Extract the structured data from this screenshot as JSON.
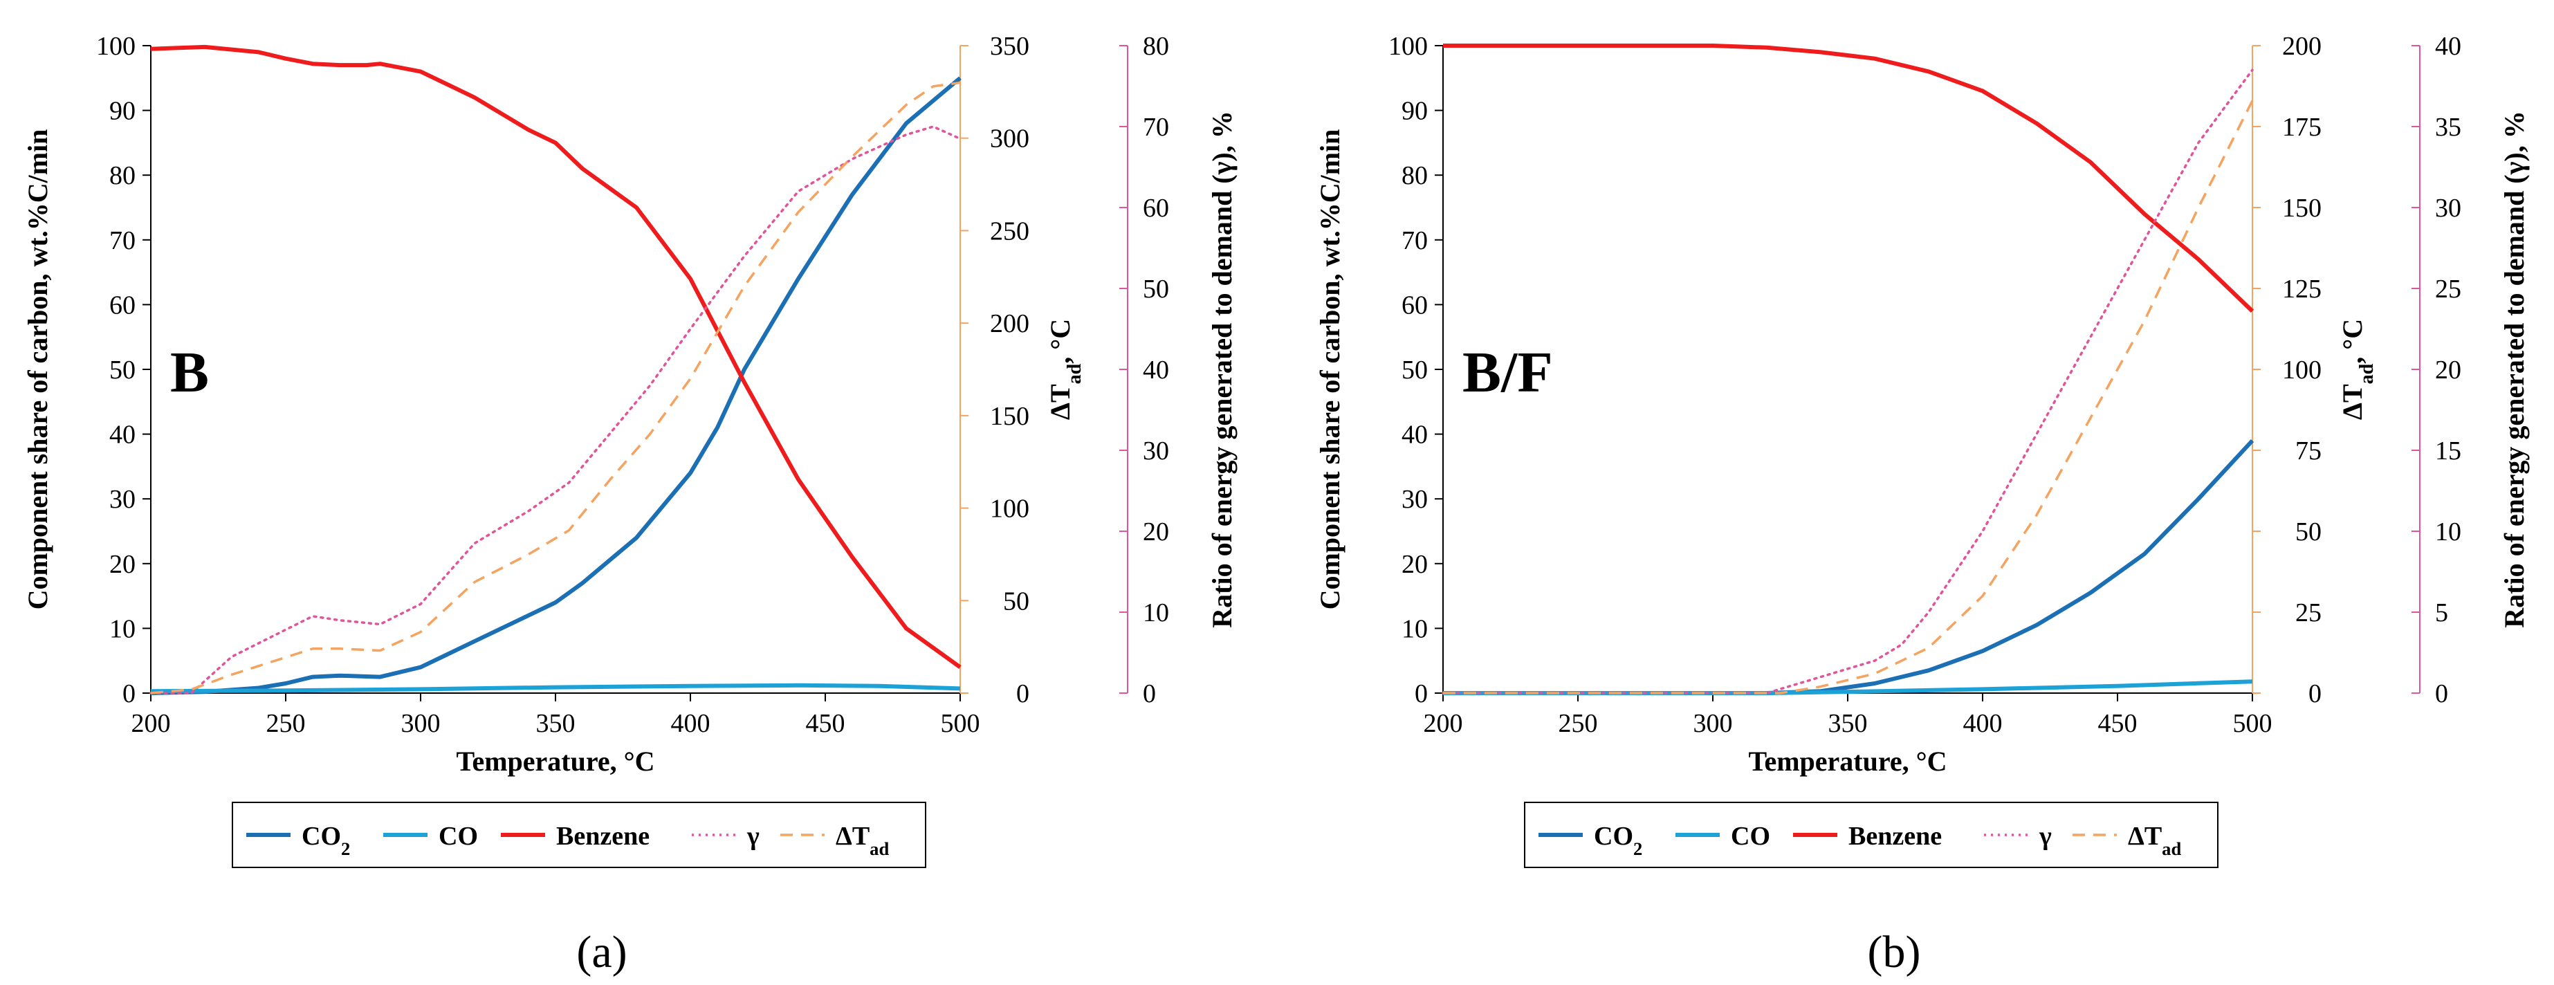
{
  "colors": {
    "co2": "#1a6fb5",
    "co": "#1da2d8",
    "benzene": "#ee1c1c",
    "gamma": "#e0559a",
    "dtad": "#f4a460",
    "axis_left": "#000000",
    "axis_mid": "#f4a460",
    "axis_right": "#e0559a"
  },
  "chart_data": [
    {
      "type": "line",
      "panel_label": "B",
      "caption": "(a)",
      "xlabel": "Temperature, °C",
      "ylabel_left": "Component share of carbon, wt.%C/min",
      "ylabel_mid": "ΔTad, °C",
      "ylabel_right": "Ratio of energy generated to demand (γ), %",
      "xlim": [
        200,
        500
      ],
      "xticks": [
        "200",
        "250",
        "300",
        "350",
        "400",
        "450",
        "500"
      ],
      "ylim_left": [
        0,
        100
      ],
      "yticks_left": [
        "0",
        "10",
        "20",
        "30",
        "40",
        "50",
        "60",
        "70",
        "80",
        "90",
        "100"
      ],
      "ylim_mid": [
        0,
        350
      ],
      "yticks_mid": [
        "0",
        "50",
        "100",
        "150",
        "200",
        "250",
        "300",
        "350"
      ],
      "ylim_right": [
        0,
        80
      ],
      "yticks_right": [
        "0",
        "10",
        "20",
        "30",
        "40",
        "50",
        "60",
        "70",
        "80"
      ],
      "legend": [
        "CO2",
        "CO",
        "Benzene",
        "γ",
        "ΔTad"
      ],
      "series": [
        {
          "name": "CO2",
          "axis": "left",
          "style": "solid",
          "x": [
            200,
            220,
            240,
            250,
            260,
            270,
            285,
            300,
            320,
            340,
            350,
            360,
            380,
            400,
            410,
            420,
            440,
            460,
            480,
            500
          ],
          "y": [
            0,
            0.2,
            0.8,
            1.5,
            2.5,
            2.7,
            2.5,
            4,
            8,
            12,
            14,
            17,
            24,
            34,
            41,
            50,
            64,
            77,
            88,
            95
          ]
        },
        {
          "name": "CO",
          "axis": "left",
          "style": "solid",
          "x": [
            200,
            250,
            300,
            350,
            400,
            440,
            470,
            500
          ],
          "y": [
            0.3,
            0.4,
            0.6,
            0.9,
            1.1,
            1.2,
            1.1,
            0.7
          ]
        },
        {
          "name": "Benzene",
          "axis": "left",
          "style": "solid",
          "x": [
            200,
            220,
            240,
            250,
            260,
            270,
            280,
            285,
            300,
            320,
            340,
            350,
            360,
            380,
            400,
            420,
            440,
            460,
            480,
            500
          ],
          "y": [
            99.5,
            99.8,
            99,
            98,
            97.2,
            97,
            97,
            97.2,
            96,
            92,
            87,
            85,
            81,
            75,
            64,
            48,
            33,
            21,
            10,
            4
          ]
        },
        {
          "name": "γ",
          "axis": "right",
          "style": "dotted",
          "x": [
            200,
            215,
            230,
            245,
            260,
            270,
            285,
            300,
            320,
            340,
            355,
            370,
            385,
            400,
            420,
            440,
            460,
            480,
            490,
            500
          ],
          "y": [
            0,
            0,
            4.5,
            7,
            9.5,
            9,
            8.5,
            11,
            18.5,
            22.5,
            26,
            32,
            38,
            45,
            54,
            62,
            66,
            69,
            70,
            68.5
          ]
        },
        {
          "name": "ΔTad",
          "axis": "mid",
          "style": "dashed",
          "x": [
            200,
            215,
            230,
            245,
            260,
            270,
            285,
            300,
            320,
            340,
            355,
            370,
            385,
            400,
            420,
            440,
            460,
            480,
            490,
            500
          ],
          "y": [
            0,
            2,
            10,
            17,
            24,
            24,
            23,
            33,
            60,
            75,
            88,
            115,
            140,
            170,
            220,
            260,
            290,
            318,
            328,
            330
          ]
        }
      ]
    },
    {
      "type": "line",
      "panel_label": "B/F",
      "caption": "(b)",
      "xlabel": "Temperature, °C",
      "ylabel_left": "Component share of carbon, wt.%C/min",
      "ylabel_mid": "ΔTad, °C",
      "ylabel_right": "Ratio of energy generated to demand (γ), %",
      "xlim": [
        200,
        500
      ],
      "xticks": [
        "200",
        "250",
        "300",
        "350",
        "400",
        "450",
        "500"
      ],
      "ylim_left": [
        0,
        100
      ],
      "yticks_left": [
        "0",
        "10",
        "20",
        "30",
        "40",
        "50",
        "60",
        "70",
        "80",
        "90",
        "100"
      ],
      "ylim_mid": [
        0,
        200
      ],
      "yticks_mid": [
        "0",
        "25",
        "50",
        "75",
        "100",
        "125",
        "150",
        "175",
        "200"
      ],
      "ylim_right": [
        0,
        40
      ],
      "yticks_right": [
        "0",
        "5",
        "10",
        "15",
        "20",
        "25",
        "30",
        "35",
        "40"
      ],
      "legend": [
        "CO2",
        "CO",
        "Benzene",
        "γ",
        "ΔTad"
      ],
      "series": [
        {
          "name": "CO2",
          "axis": "left",
          "style": "solid",
          "x": [
            200,
            320,
            340,
            360,
            380,
            400,
            420,
            440,
            460,
            480,
            500
          ],
          "y": [
            0,
            0,
            0.3,
            1.5,
            3.5,
            6.5,
            10.5,
            15.5,
            21.5,
            30,
            39
          ]
        },
        {
          "name": "CO",
          "axis": "left",
          "style": "solid",
          "x": [
            200,
            320,
            350,
            400,
            450,
            500
          ],
          "y": [
            0,
            0,
            0.2,
            0.6,
            1.1,
            1.8
          ]
        },
        {
          "name": "Benzene",
          "axis": "left",
          "style": "solid",
          "x": [
            200,
            300,
            320,
            340,
            360,
            380,
            400,
            420,
            440,
            460,
            480,
            500
          ],
          "y": [
            100,
            100,
            99.7,
            99,
            98,
            96,
            93,
            88,
            82,
            74,
            67,
            59
          ]
        },
        {
          "name": "γ",
          "axis": "right",
          "style": "dotted",
          "x": [
            200,
            320,
            340,
            360,
            370,
            380,
            400,
            420,
            440,
            460,
            480,
            500
          ],
          "y": [
            0,
            0,
            1,
            2,
            3,
            5,
            10,
            16,
            22,
            28,
            34,
            38.5
          ]
        },
        {
          "name": "ΔTad",
          "axis": "mid",
          "style": "dashed",
          "x": [
            200,
            325,
            340,
            360,
            380,
            400,
            420,
            440,
            460,
            480,
            500
          ],
          "y": [
            0,
            0,
            2,
            6,
            14,
            30,
            55,
            85,
            115,
            150,
            183
          ]
        }
      ]
    }
  ]
}
